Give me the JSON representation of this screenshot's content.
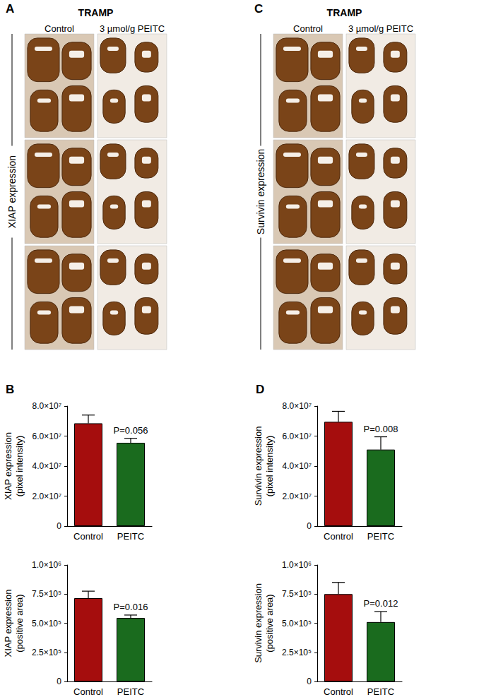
{
  "panels": [
    {
      "label": "A",
      "header": "TRAMP",
      "columns": [
        "Control",
        "3 µmol/g PEITC"
      ],
      "row_label": "XIAP expression"
    },
    {
      "label": "C",
      "header": "TRAMP",
      "columns": [
        "Control",
        "3 µmol/g PEITC"
      ],
      "row_label": "Survivin expression"
    }
  ],
  "chart_data": [
    {
      "type": "bar",
      "panel": "B",
      "ylabel": "XIAP expression\n(pixel intensity)",
      "categories": [
        "Control",
        "PEITC"
      ],
      "values": [
        68500000,
        55500000
      ],
      "errors": [
        5500000,
        3000000
      ],
      "colors": [
        "#a50d0d",
        "#1a6b1e"
      ],
      "ylim": [
        0,
        80000000
      ],
      "yticks": [
        0,
        {
          "value": 20000000,
          "label": "2.0×10⁷"
        },
        {
          "value": 40000000,
          "label": "4.0×10⁷"
        },
        {
          "value": 60000000,
          "label": "6.0×10⁷"
        },
        {
          "value": 80000000,
          "label": "8.0×10⁷"
        }
      ],
      "grid": false,
      "annotations": [
        {
          "category": "PEITC",
          "text": "P=0.056"
        }
      ]
    },
    {
      "type": "bar",
      "ylabel": "XIAP expression\n(positive area)",
      "categories": [
        "Control",
        "PEITC"
      ],
      "values": [
        715000,
        545000
      ],
      "errors": [
        60000,
        25000
      ],
      "colors": [
        "#a50d0d",
        "#1a6b1e"
      ],
      "ylim": [
        0,
        1000000
      ],
      "yticks": [
        0,
        {
          "value": 250000,
          "label": "2.5×10⁵"
        },
        {
          "value": 500000,
          "label": "5.0×10⁵"
        },
        {
          "value": 750000,
          "label": "7.5×10⁵"
        },
        {
          "value": 1000000,
          "label": "1.0×10⁶"
        }
      ],
      "grid": false,
      "annotations": [
        {
          "category": "PEITC",
          "text": "P=0.016"
        }
      ]
    },
    {
      "type": "bar",
      "panel": "D",
      "ylabel": "Survivin expression\n(pixel intensity)",
      "categories": [
        "Control",
        "PEITC"
      ],
      "values": [
        69500000,
        51000000
      ],
      "errors": [
        7000000,
        8500000
      ],
      "colors": [
        "#a50d0d",
        "#1a6b1e"
      ],
      "ylim": [
        0,
        80000000
      ],
      "yticks": [
        0,
        {
          "value": 20000000,
          "label": "2.0×10⁷"
        },
        {
          "value": 40000000,
          "label": "4.0×10⁷"
        },
        {
          "value": 60000000,
          "label": "6.0×10⁷"
        },
        {
          "value": 80000000,
          "label": "8.0×10⁷"
        }
      ],
      "grid": false,
      "annotations": [
        {
          "category": "PEITC",
          "text": "P=0.008"
        }
      ]
    },
    {
      "type": "bar",
      "ylabel": "Survivin expression\n(positive area)",
      "categories": [
        "Control",
        "PEITC"
      ],
      "values": [
        750000,
        510000
      ],
      "errors": [
        100000,
        90000
      ],
      "colors": [
        "#a50d0d",
        "#1a6b1e"
      ],
      "ylim": [
        0,
        1000000
      ],
      "yticks": [
        0,
        {
          "value": 250000,
          "label": "2.5×10⁵"
        },
        {
          "value": 500000,
          "label": "5.0×10⁵"
        },
        {
          "value": 750000,
          "label": "7.5×10⁵"
        },
        {
          "value": 1000000,
          "label": "1.0×10⁶"
        }
      ],
      "grid": false,
      "annotations": [
        {
          "category": "PEITC",
          "text": "P=0.012"
        }
      ]
    }
  ]
}
